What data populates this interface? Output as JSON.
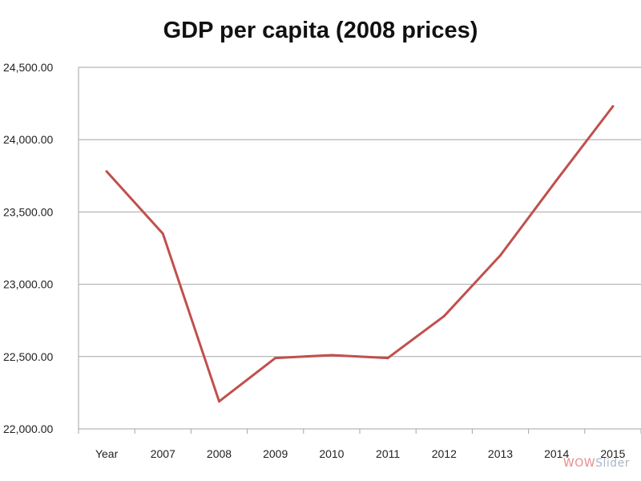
{
  "chart_data": {
    "type": "line",
    "title": "GDP per capita (2008 prices)",
    "xlabel": "",
    "ylabel": "",
    "categories": [
      "Year",
      "2007",
      "2008",
      "2009",
      "2010",
      "2011",
      "2012",
      "2013",
      "2014",
      "2015"
    ],
    "series": [
      {
        "values": [
          23780,
          23350,
          22190,
          22490,
          22510,
          22490,
          22780,
          23200,
          23720,
          24230
        ],
        "color": "#c0504d"
      }
    ],
    "y_tick_labels": [
      "22,000.00",
      "22,500.00",
      "23,000.00",
      "23,500.00",
      "24,000.00",
      "24,500.00"
    ],
    "y_ticks": [
      22000,
      22500,
      23000,
      23500,
      24000,
      24500
    ],
    "ylim": [
      22000,
      24500
    ],
    "grid": true,
    "legend": "none",
    "gridline_color": "#a6a6a6"
  },
  "watermark": {
    "part_a": "WOW",
    "part_b": "Slider"
  }
}
